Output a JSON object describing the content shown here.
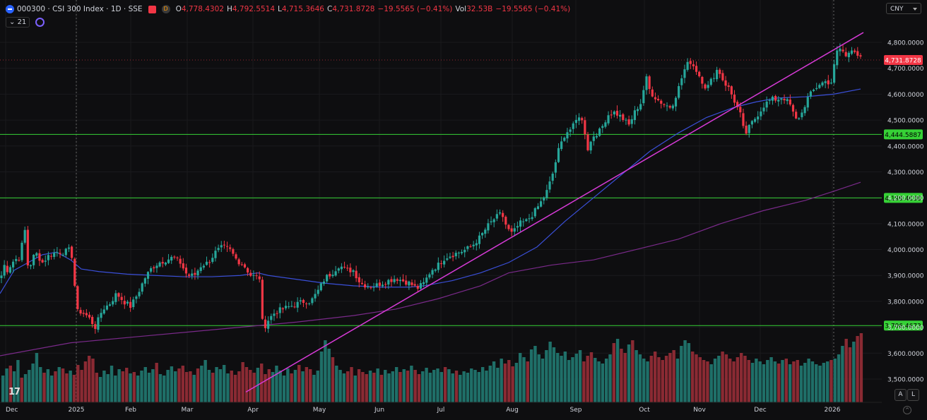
{
  "header": {
    "symbol": "000300 · CSI 300 Index · 1D · SSE",
    "timeframe_badge": "D",
    "open_label": "O",
    "open": "4,778.4302",
    "high_label": "H",
    "high": "4,792.5514",
    "low_label": "L",
    "low": "4,715.3646",
    "close_label": "C",
    "close": "4,731.8728",
    "change": "−19.5565 (−0.41%)",
    "vol_label": "Vol",
    "vol": "32.53B",
    "vol_change": "−19.5565 (−0.41%)",
    "indicator_count": "21"
  },
  "currency": "CNY",
  "buttons": {
    "auto": "A",
    "log": "L"
  },
  "watermark": "17",
  "colors": {
    "up": "#26a69a",
    "down": "#f23645",
    "sma_fast": "#3a4fd8",
    "sma_slow": "#7a2a8a",
    "trendline": "#d63ad6",
    "hline": "#36d136",
    "bg": "#0e0e10"
  },
  "chart_data": {
    "type": "candlestick",
    "title": "000300 · CSI 300 Index · 1D · SSE",
    "ylim": [
      3460,
      4860
    ],
    "y_ticks": [
      "4,800.0000",
      "4,700.0000",
      "4,600.0000",
      "4,500.0000",
      "4,400.0000",
      "4,300.0000",
      "4,200.0000",
      "4,100.0000",
      "4,000.0000",
      "3,900.0000",
      "3,800.0000",
      "3,700.0000",
      "3,600.0000",
      "3,500.0000"
    ],
    "x_labels": [
      "Dec",
      "2025",
      "Feb",
      "Mar",
      "Apr",
      "May",
      "Jun",
      "Jul",
      "Aug",
      "Sep",
      "Oct",
      "Nov",
      "Dec",
      "2026"
    ],
    "last_price_label": "4,731.8728",
    "horizontal_levels": [
      {
        "value": 4444.5887,
        "label": "4,444.5887"
      },
      {
        "value": 4199.4038,
        "label": "4,199.4038"
      },
      {
        "value": 3706.4673,
        "label": "3,706.4673"
      }
    ],
    "trendline": [
      {
        "x": 348,
        "y": 3450
      },
      {
        "x": 1222,
        "y": 4838
      }
    ],
    "anchors": [
      [
        0,
        3850
      ],
      [
        4,
        3950
      ],
      [
        10,
        3920
      ],
      [
        20,
        3960
      ],
      [
        28,
        3970
      ],
      [
        35,
        4080
      ],
      [
        40,
        3920
      ],
      [
        50,
        3990
      ],
      [
        60,
        3950
      ],
      [
        70,
        3980
      ],
      [
        80,
        3990
      ],
      [
        90,
        3990
      ],
      [
        100,
        4000
      ],
      [
        104,
        3940
      ],
      [
        108,
        3760
      ],
      [
        115,
        3760
      ],
      [
        125,
        3740
      ],
      [
        135,
        3700
      ],
      [
        145,
        3770
      ],
      [
        155,
        3790
      ],
      [
        165,
        3830
      ],
      [
        175,
        3800
      ],
      [
        185,
        3780
      ],
      [
        195,
        3830
      ],
      [
        205,
        3890
      ],
      [
        215,
        3930
      ],
      [
        225,
        3950
      ],
      [
        235,
        3960
      ],
      [
        245,
        3970
      ],
      [
        255,
        3950
      ],
      [
        265,
        3900
      ],
      [
        275,
        3900
      ],
      [
        285,
        3940
      ],
      [
        295,
        3950
      ],
      [
        305,
        3990
      ],
      [
        315,
        4010
      ],
      [
        325,
        4000
      ],
      [
        335,
        3960
      ],
      [
        345,
        3940
      ],
      [
        355,
        3900
      ],
      [
        368,
        3890
      ],
      [
        372,
        3690
      ],
      [
        380,
        3730
      ],
      [
        390,
        3760
      ],
      [
        400,
        3770
      ],
      [
        410,
        3780
      ],
      [
        420,
        3790
      ],
      [
        430,
        3800
      ],
      [
        440,
        3800
      ],
      [
        450,
        3840
      ],
      [
        460,
        3890
      ],
      [
        470,
        3910
      ],
      [
        480,
        3940
      ],
      [
        490,
        3920
      ],
      [
        500,
        3920
      ],
      [
        510,
        3870
      ],
      [
        520,
        3860
      ],
      [
        530,
        3860
      ],
      [
        540,
        3870
      ],
      [
        550,
        3880
      ],
      [
        560,
        3890
      ],
      [
        570,
        3880
      ],
      [
        580,
        3870
      ],
      [
        590,
        3850
      ],
      [
        600,
        3870
      ],
      [
        610,
        3920
      ],
      [
        620,
        3940
      ],
      [
        630,
        3970
      ],
      [
        640,
        3980
      ],
      [
        650,
        3990
      ],
      [
        660,
        4000
      ],
      [
        670,
        4020
      ],
      [
        680,
        4050
      ],
      [
        690,
        4090
      ],
      [
        700,
        4120
      ],
      [
        710,
        4140
      ],
      [
        718,
        4080
      ],
      [
        725,
        4060
      ],
      [
        735,
        4100
      ],
      [
        745,
        4110
      ],
      [
        755,
        4140
      ],
      [
        765,
        4180
      ],
      [
        775,
        4230
      ],
      [
        783,
        4300
      ],
      [
        790,
        4380
      ],
      [
        800,
        4450
      ],
      [
        810,
        4470
      ],
      [
        820,
        4520
      ],
      [
        826,
        4480
      ],
      [
        832,
        4390
      ],
      [
        840,
        4440
      ],
      [
        850,
        4460
      ],
      [
        860,
        4520
      ],
      [
        870,
        4530
      ],
      [
        880,
        4510
      ],
      [
        890,
        4480
      ],
      [
        900,
        4540
      ],
      [
        908,
        4570
      ],
      [
        914,
        4670
      ],
      [
        920,
        4610
      ],
      [
        930,
        4580
      ],
      [
        940,
        4560
      ],
      [
        950,
        4550
      ],
      [
        960,
        4620
      ],
      [
        968,
        4690
      ],
      [
        976,
        4730
      ],
      [
        984,
        4700
      ],
      [
        992,
        4660
      ],
      [
        1000,
        4620
      ],
      [
        1008,
        4660
      ],
      [
        1016,
        4700
      ],
      [
        1024,
        4650
      ],
      [
        1032,
        4620
      ],
      [
        1040,
        4570
      ],
      [
        1048,
        4520
      ],
      [
        1054,
        4440
      ],
      [
        1062,
        4480
      ],
      [
        1072,
        4520
      ],
      [
        1082,
        4560
      ],
      [
        1092,
        4580
      ],
      [
        1100,
        4580
      ],
      [
        1108,
        4590
      ],
      [
        1118,
        4560
      ],
      [
        1126,
        4500
      ],
      [
        1134,
        4520
      ],
      [
        1142,
        4580
      ],
      [
        1150,
        4610
      ],
      [
        1160,
        4640
      ],
      [
        1170,
        4650
      ],
      [
        1176,
        4640
      ],
      [
        1180,
        4700
      ],
      [
        1186,
        4780
      ],
      [
        1192,
        4770
      ],
      [
        1198,
        4740
      ],
      [
        1204,
        4780
      ],
      [
        1210,
        4770
      ],
      [
        1216,
        4740
      ],
      [
        1220,
        4731.87
      ]
    ],
    "sma_fast": [
      [
        0,
        3830
      ],
      [
        20,
        3920
      ],
      [
        40,
        3950
      ],
      [
        60,
        3980
      ],
      [
        80,
        3990
      ],
      [
        100,
        3960
      ],
      [
        115,
        3925
      ],
      [
        140,
        3915
      ],
      [
        180,
        3905
      ],
      [
        220,
        3900
      ],
      [
        260,
        3895
      ],
      [
        300,
        3895
      ],
      [
        340,
        3900
      ],
      [
        365,
        3910
      ],
      [
        380,
        3900
      ],
      [
        420,
        3885
      ],
      [
        460,
        3870
      ],
      [
        500,
        3860
      ],
      [
        540,
        3855
      ],
      [
        580,
        3855
      ],
      [
        600,
        3860
      ],
      [
        640,
        3880
      ],
      [
        680,
        3910
      ],
      [
        720,
        3950
      ],
      [
        760,
        4010
      ],
      [
        800,
        4110
      ],
      [
        840,
        4200
      ],
      [
        880,
        4290
      ],
      [
        920,
        4380
      ],
      [
        960,
        4450
      ],
      [
        1000,
        4510
      ],
      [
        1040,
        4550
      ],
      [
        1070,
        4570
      ],
      [
        1100,
        4585
      ],
      [
        1140,
        4590
      ],
      [
        1180,
        4600
      ],
      [
        1218,
        4620
      ]
    ],
    "sma_slow": [
      [
        0,
        3590
      ],
      [
        100,
        3640
      ],
      [
        200,
        3665
      ],
      [
        300,
        3690
      ],
      [
        360,
        3705
      ],
      [
        420,
        3720
      ],
      [
        500,
        3745
      ],
      [
        560,
        3770
      ],
      [
        620,
        3810
      ],
      [
        680,
        3860
      ],
      [
        720,
        3910
      ],
      [
        780,
        3940
      ],
      [
        840,
        3960
      ],
      [
        900,
        4000
      ],
      [
        960,
        4040
      ],
      [
        1020,
        4100
      ],
      [
        1080,
        4150
      ],
      [
        1140,
        4190
      ],
      [
        1180,
        4225
      ],
      [
        1218,
        4260
      ]
    ],
    "volume_heights": [
      38,
      48,
      52,
      44,
      60,
      35,
      40,
      46,
      55,
      70,
      50,
      42,
      47,
      38,
      44,
      50,
      48,
      41,
      45,
      39,
      53,
      46,
      58,
      66,
      62,
      42,
      36,
      45,
      40,
      52,
      38,
      47,
      44,
      49,
      41,
      43,
      38,
      45,
      50,
      42,
      47,
      56,
      40,
      38,
      46,
      51,
      44,
      48,
      52,
      43,
      44,
      39,
      48,
      52,
      60,
      46,
      42,
      50,
      47,
      53,
      41,
      45,
      39,
      44,
      57,
      50,
      46,
      42,
      49,
      55,
      40,
      47,
      43,
      52,
      45,
      38,
      48,
      41,
      46,
      53,
      44,
      50,
      47,
      39,
      45,
      72,
      88,
      76,
      64,
      52,
      46,
      41,
      44,
      50,
      38,
      47,
      43,
      40,
      45,
      42,
      48,
      39,
      46,
      41,
      44,
      50,
      43,
      47,
      45,
      52,
      46,
      40,
      44,
      49,
      42,
      46,
      48,
      43,
      50,
      47,
      41,
      45,
      39,
      44,
      42,
      48,
      46,
      43,
      50,
      45,
      52,
      58,
      49,
      62,
      55,
      60,
      51,
      56,
      70,
      64,
      58,
      75,
      80,
      68,
      62,
      74,
      86,
      78,
      70,
      66,
      72,
      60,
      64,
      69,
      74,
      58,
      66,
      71,
      63,
      58,
      55,
      62,
      68,
      84,
      90,
      76,
      70,
      82,
      88,
      74,
      68,
      62,
      58,
      66,
      72,
      64,
      60,
      66,
      70,
      74,
      62,
      80,
      88,
      84,
      72,
      68,
      64,
      60,
      58,
      54,
      62,
      66,
      72,
      68,
      62,
      58,
      64,
      70,
      66,
      60,
      56,
      62,
      58,
      54,
      60,
      64,
      58,
      55,
      60,
      62,
      54,
      58,
      60,
      52,
      56,
      62,
      58,
      54,
      52,
      56,
      58,
      60,
      62,
      68,
      80,
      90,
      78,
      86,
      94,
      98
    ]
  }
}
